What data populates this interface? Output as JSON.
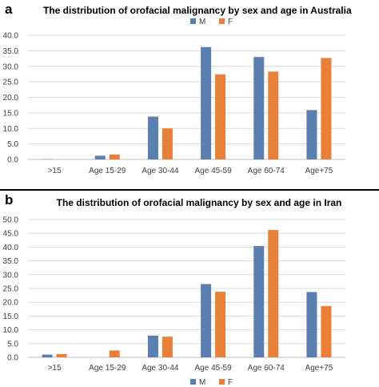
{
  "panels": [
    {
      "letter": "a",
      "title": "The distribution of orofacial malignancy by sex and age in Australia"
    },
    {
      "letter": "b",
      "title": "The distribution of orofacial malignancy by sex and age in Iran"
    }
  ],
  "chart_data": [
    {
      "type": "bar",
      "title": "The distribution of orofacial malignancy by sex and age in Australia",
      "categories": [
        ">15",
        "Age 15-29",
        "Age 30-44",
        "Age 45-59",
        "Age 60-74",
        "Age+75"
      ],
      "series": [
        {
          "name": "M",
          "values": [
            0.1,
            1.2,
            13.8,
            36.2,
            33.0,
            15.9
          ],
          "color": "#5b7fb0"
        },
        {
          "name": "F",
          "values": [
            0.0,
            1.6,
            10.0,
            27.4,
            28.3,
            32.7
          ],
          "color": "#e8803a"
        }
      ],
      "ylim": [
        0,
        40
      ],
      "yticks": [
        "0.0",
        "5.0",
        "10.0",
        "15.0",
        "20.0",
        "25.0",
        "30.0",
        "35.0",
        "40.0"
      ],
      "legend": "top-right",
      "grid": true
    },
    {
      "type": "bar",
      "title": "The distribution of orofacial malignancy by sex and age in Iran",
      "categories": [
        ">15",
        "Age 15-29",
        "Age 30-44",
        "Age 45-59",
        "Age 60-74",
        "Age+75"
      ],
      "series": [
        {
          "name": "M",
          "values": [
            1.0,
            0.0,
            7.9,
            26.6,
            40.4,
            23.7
          ],
          "color": "#5b7fb0"
        },
        {
          "name": "F",
          "values": [
            1.2,
            2.5,
            7.5,
            23.8,
            46.2,
            18.6
          ],
          "color": "#e8803a"
        }
      ],
      "ylim": [
        0,
        50
      ],
      "yticks": [
        "0.0",
        "5.0",
        "10.0",
        "15.0",
        "20.0",
        "25.0",
        "30.0",
        "35.0",
        "40.0",
        "45.0",
        "50.0"
      ],
      "legend": "top-right",
      "grid": true
    }
  ]
}
